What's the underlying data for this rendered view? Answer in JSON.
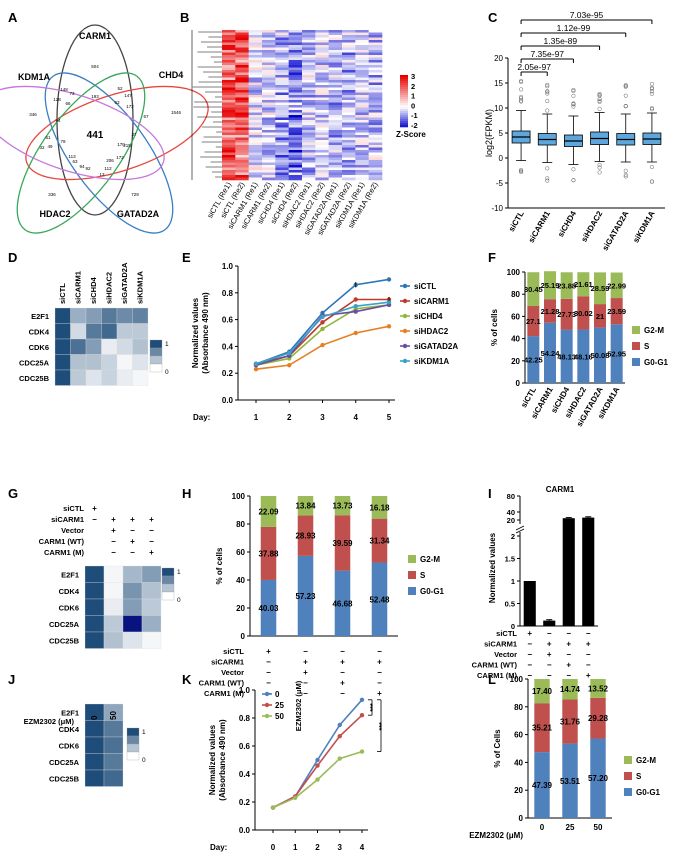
{
  "panel_letters": [
    "A",
    "B",
    "C",
    "D",
    "E",
    "F",
    "G",
    "H",
    "I",
    "J",
    "K",
    "L"
  ],
  "chart_data": [
    {
      "panel": "A",
      "type": "venn",
      "sets": [
        "CARM1",
        "CHD4",
        "GATAD2A",
        "HDAC2",
        "KDM1A"
      ],
      "colors": {
        "CARM1": "#444444",
        "CHD4": "#e8473f",
        "GATAD2A": "#3a7fc4",
        "HDAC2": "#3aa85a",
        "KDM1A": "#c678dd"
      },
      "core_value": "441",
      "region_values": [
        "504",
        "1546",
        "729",
        "336",
        "346",
        "148",
        "73",
        "193",
        "52",
        "147",
        "128",
        "94",
        "172",
        "67",
        "113",
        "79",
        "61",
        "172",
        "170",
        "215",
        "49",
        "32",
        "112",
        "206",
        "92",
        "94",
        "66",
        "63",
        "63",
        "37",
        "13"
      ]
    },
    {
      "panel": "B",
      "type": "heatmap",
      "columns": [
        "siCTL (Re1)",
        "siCTL (Re2)",
        "siCARM1 (Re1)",
        "siCARM1 (Re2)",
        "siCHD4 (Re1)",
        "siCHD4 (Re2)",
        "siHDAC2 (Re1)",
        "siHDAC2 (Re2)",
        "siGATAD2A (Re1)",
        "siGATAD2A (Re2)",
        "siKDM1A (Re1)",
        "siKDM1A (Re2)"
      ],
      "color_scale": {
        "title": "Z-Score",
        "ticks": [
          "3",
          "2",
          "1",
          "0",
          "-1",
          "-2"
        ],
        "colors": [
          "#0000cc",
          "#ffffff",
          "#e60000"
        ]
      }
    },
    {
      "panel": "C",
      "type": "box",
      "categories": [
        "siCTL",
        "siCARM1",
        "siCHD4",
        "siHDAC2",
        "siGATAD2A",
        "siKDM1A"
      ],
      "ylabel": "log2(FPKM)",
      "ylim": [
        -10,
        20
      ],
      "yticks": [
        "-10",
        "-5",
        "0",
        "5",
        "10",
        "15",
        "20"
      ],
      "medians": [
        4.2,
        3.7,
        3.4,
        3.9,
        3.7,
        3.8
      ],
      "q1": [
        3.0,
        2.6,
        2.3,
        2.7,
        2.6,
        2.7
      ],
      "q3": [
        5.4,
        4.9,
        4.6,
        5.2,
        4.9,
        5.0
      ],
      "whisker_low": [
        -0.5,
        -0.9,
        -1.3,
        -0.7,
        -0.8,
        -0.8
      ],
      "whisker_high": [
        9.5,
        8.8,
        8.4,
        9.1,
        8.8,
        9.0
      ],
      "pvalues": [
        "2.05e-97",
        "7.35e-97",
        "1.35e-89",
        "1.12e-99",
        "7.03e-95"
      ]
    },
    {
      "panel": "D",
      "type": "heatmap",
      "columns": [
        "siCTL",
        "siCARM1",
        "siCHD4",
        "siHDAC2",
        "siGATAD2A",
        "siKDM1A"
      ],
      "rows": [
        "E2F1",
        "CDK4",
        "CDK6",
        "CDC25A",
        "CDC25B"
      ],
      "values": [
        [
          1,
          0.45,
          0.55,
          0.75,
          0.65,
          0.7
        ],
        [
          1,
          0.2,
          0.75,
          0.85,
          0.3,
          0.3
        ],
        [
          1,
          0.8,
          0.55,
          0.1,
          0.2,
          0.35
        ],
        [
          1,
          0.35,
          0.35,
          0.25,
          0.05,
          0.15
        ],
        [
          1,
          0.3,
          0.15,
          0.25,
          0.1,
          0.05
        ]
      ],
      "scale_ticks": [
        "1",
        "0"
      ]
    },
    {
      "panel": "E",
      "type": "line",
      "xlabel_prefix": "Day:",
      "x": [
        1,
        2,
        3,
        4,
        5
      ],
      "ylabel": "Normalized values (Absorbance 490 nm)",
      "ylim": [
        0,
        1.0
      ],
      "yticks": [
        "0.0",
        "0.2",
        "0.4",
        "0.6",
        "0.8",
        "1.0"
      ],
      "series": [
        {
          "name": "siCTL",
          "color": "#2e75b6",
          "values": [
            0.27,
            0.36,
            0.65,
            0.86,
            0.9
          ]
        },
        {
          "name": "siCARM1",
          "color": "#c0392b",
          "values": [
            0.27,
            0.33,
            0.58,
            0.75,
            0.75
          ]
        },
        {
          "name": "siCHD4",
          "color": "#8fb73b",
          "values": [
            0.26,
            0.31,
            0.53,
            0.68,
            0.71
          ]
        },
        {
          "name": "siHDAC2",
          "color": "#e67e22",
          "values": [
            0.23,
            0.26,
            0.41,
            0.5,
            0.55
          ]
        },
        {
          "name": "siGATAD2A",
          "color": "#6a4ca3",
          "values": [
            0.26,
            0.33,
            0.63,
            0.66,
            0.71
          ]
        },
        {
          "name": "siKDM1A",
          "color": "#3aa2c9",
          "values": [
            0.27,
            0.35,
            0.62,
            0.7,
            0.73
          ]
        }
      ]
    },
    {
      "panel": "F",
      "type": "stacked_bar",
      "categories": [
        "siCTL",
        "siCARM1",
        "siCHD4",
        "siHDAC2",
        "siGATAD2A",
        "siKDM1A"
      ],
      "ylabel": "% of cells",
      "ylim": [
        0,
        100
      ],
      "yticks": [
        "0",
        "20",
        "40",
        "60",
        "80",
        "100"
      ],
      "series": [
        {
          "name": "G0-G1",
          "color": "#4f81bd",
          "values": [
            42.25,
            54.24,
            48.13,
            48.16,
            50.08,
            52.95
          ]
        },
        {
          "name": "S",
          "color": "#c0504d",
          "values": [
            27.1,
            21.28,
            27.73,
            30.02,
            21,
            23.59
          ]
        },
        {
          "name": "G2-M",
          "color": "#9bbb59",
          "values": [
            30.45,
            25.19,
            23.88,
            21.61,
            28.59,
            22.99
          ]
        }
      ],
      "labels": {
        "G0-G1": [
          "42.25",
          "54.24",
          "48.13",
          "48.16",
          "50.08",
          "52.95"
        ],
        "S": [
          "27.1",
          "21.28",
          "27.73",
          "30.02",
          "21",
          "23.59"
        ],
        "G2-M": [
          "30.45",
          "25.19",
          "23.88",
          "21.61",
          "28.59",
          "22.99"
        ]
      },
      "legend": [
        "G2-M",
        "S",
        "G0-G1"
      ]
    },
    {
      "panel": "G",
      "type": "heatmap",
      "conditions": [
        {
          "label": "siCTL",
          "marks": [
            "+",
            "",
            "",
            " "
          ]
        },
        {
          "label": "siCARM1",
          "marks": [
            "−",
            "+",
            "+",
            "+"
          ]
        },
        {
          "label": "Vector",
          "marks": [
            "",
            "+",
            "−",
            "−"
          ]
        },
        {
          "label": "CARM1 (WT)",
          "marks": [
            "",
            "−",
            "+",
            "−"
          ]
        },
        {
          "label": "CARM1 (M)",
          "marks": [
            "",
            "−",
            "−",
            "+"
          ]
        }
      ],
      "rows": [
        "E2F1",
        "CDK4",
        "CDK6",
        "CDC25A",
        "CDC25B"
      ],
      "values": [
        [
          1,
          0.05,
          0.4,
          0.55
        ],
        [
          1,
          0.05,
          0.6,
          0.35
        ],
        [
          1,
          0.1,
          0.55,
          0.3
        ],
        [
          1,
          0.3,
          1.15,
          0.45
        ],
        [
          1,
          0.35,
          0.15,
          0.05
        ]
      ],
      "scale_ticks": [
        "1",
        "0"
      ]
    },
    {
      "panel": "H",
      "type": "stacked_bar",
      "ylabel": "% of cells",
      "ylim": [
        0,
        100
      ],
      "yticks": [
        "0",
        "20",
        "40",
        "60",
        "80",
        "100"
      ],
      "series": [
        {
          "name": "G0-G1",
          "color": "#4f81bd",
          "values": [
            40.03,
            57.23,
            46.68,
            52.48
          ]
        },
        {
          "name": "S",
          "color": "#c0504d",
          "values": [
            37.88,
            28.93,
            39.59,
            31.34
          ]
        },
        {
          "name": "G2-M",
          "color": "#9bbb59",
          "values": [
            22.09,
            13.84,
            13.73,
            16.18
          ]
        }
      ],
      "labels": {
        "G0-G1": [
          "40.03",
          "57.23",
          "46.68",
          "52.48"
        ],
        "S": [
          "37.88",
          "28.93",
          "39.59",
          "31.34"
        ],
        "G2-M": [
          "22.09",
          "13.84",
          "13.73",
          "16.18"
        ]
      },
      "legend": [
        "G2-M",
        "S",
        "G0-G1"
      ],
      "conditions": [
        {
          "label": "siCTL",
          "marks": [
            "+",
            "−",
            "−",
            "−"
          ]
        },
        {
          "label": "siCARM1",
          "marks": [
            "−",
            "+",
            "+",
            "+"
          ]
        },
        {
          "label": "Vector",
          "marks": [
            "−",
            "+",
            "−",
            "−"
          ]
        },
        {
          "label": "CARM1 (WT)",
          "marks": [
            "−",
            "−",
            "+",
            "−"
          ]
        },
        {
          "label": "CARM1 (M)",
          "marks": [
            "−",
            "−",
            "−",
            "+"
          ]
        }
      ]
    },
    {
      "panel": "I",
      "type": "bar",
      "title": "CARM1",
      "ylabel": "Normalized values",
      "values": [
        1.0,
        0.12,
        24.5,
        26.0
      ],
      "errors": [
        0,
        0.02,
        1.5,
        2.0
      ],
      "yticks": [
        "0",
        "0.5",
        "1",
        "1.5",
        "2",
        "20",
        "40",
        "80"
      ],
      "conditions": [
        {
          "label": "siCTL",
          "marks": [
            "+",
            "−",
            "−",
            "−"
          ]
        },
        {
          "label": "siCARM1",
          "marks": [
            "−",
            "+",
            "+",
            "+"
          ]
        },
        {
          "label": "Vector",
          "marks": [
            "−",
            "+",
            "−",
            "−"
          ]
        },
        {
          "label": "CARM1 (WT)",
          "marks": [
            "−",
            "−",
            "+",
            "−"
          ]
        },
        {
          "label": "CARM1 (M)",
          "marks": [
            "−",
            "−",
            "−",
            "+"
          ]
        }
      ]
    },
    {
      "panel": "J",
      "type": "heatmap",
      "treatment_label": "EZM2302 (μM)",
      "columns": [
        "0",
        "50"
      ],
      "rows": [
        "E2F1",
        "CDK4",
        "CDK6",
        "CDC25A",
        "CDC25B"
      ],
      "values": [
        [
          1,
          0.5
        ],
        [
          1,
          0.75
        ],
        [
          1,
          0.8
        ],
        [
          1,
          0.75
        ],
        [
          1,
          0.85
        ]
      ],
      "scale_ticks": [
        "1",
        "0"
      ]
    },
    {
      "panel": "K",
      "type": "line",
      "xlabel_prefix": "Day:",
      "x": [
        0,
        1,
        2,
        3,
        4
      ],
      "ylabel": "Normalized values (Absorbance 490 nm)",
      "ylim": [
        0,
        1.0
      ],
      "yticks": [
        "0.0",
        "0.2",
        "0.4",
        "0.6",
        "0.8",
        "1.0"
      ],
      "legend_title": "EZM2302 (μM)",
      "significance": [
        "***",
        "***"
      ],
      "series": [
        {
          "name": "0",
          "color": "#4f81bd",
          "values": [
            0.16,
            0.24,
            0.5,
            0.75,
            0.93
          ]
        },
        {
          "name": "25",
          "color": "#c0504d",
          "values": [
            0.16,
            0.24,
            0.46,
            0.67,
            0.82
          ]
        },
        {
          "name": "50",
          "color": "#9bbb59",
          "values": [
            0.16,
            0.23,
            0.36,
            0.51,
            0.56
          ]
        }
      ]
    },
    {
      "panel": "L",
      "type": "stacked_bar",
      "xlabel_prefix": "EZM2302 (μM)",
      "categories": [
        "0",
        "25",
        "50"
      ],
      "ylabel": "% of Cells",
      "ylim": [
        0,
        100
      ],
      "yticks": [
        "0",
        "20",
        "40",
        "60",
        "80",
        "100"
      ],
      "series": [
        {
          "name": "G0-G1",
          "color": "#4f81bd",
          "values": [
            47.39,
            53.51,
            57.2
          ]
        },
        {
          "name": "S",
          "color": "#c0504d",
          "values": [
            35.21,
            31.76,
            29.28
          ]
        },
        {
          "name": "G2-M",
          "color": "#9bbb59",
          "values": [
            17.4,
            14.74,
            13.52
          ]
        }
      ],
      "labels": {
        "G0-G1": [
          "47.39",
          "53.51",
          "57.20"
        ],
        "S": [
          "35.21",
          "31.76",
          "29.28"
        ],
        "G2-M": [
          "17.40",
          "14.74",
          "13.52"
        ]
      },
      "legend": [
        "G2-M",
        "S",
        "G0-G1"
      ]
    }
  ]
}
